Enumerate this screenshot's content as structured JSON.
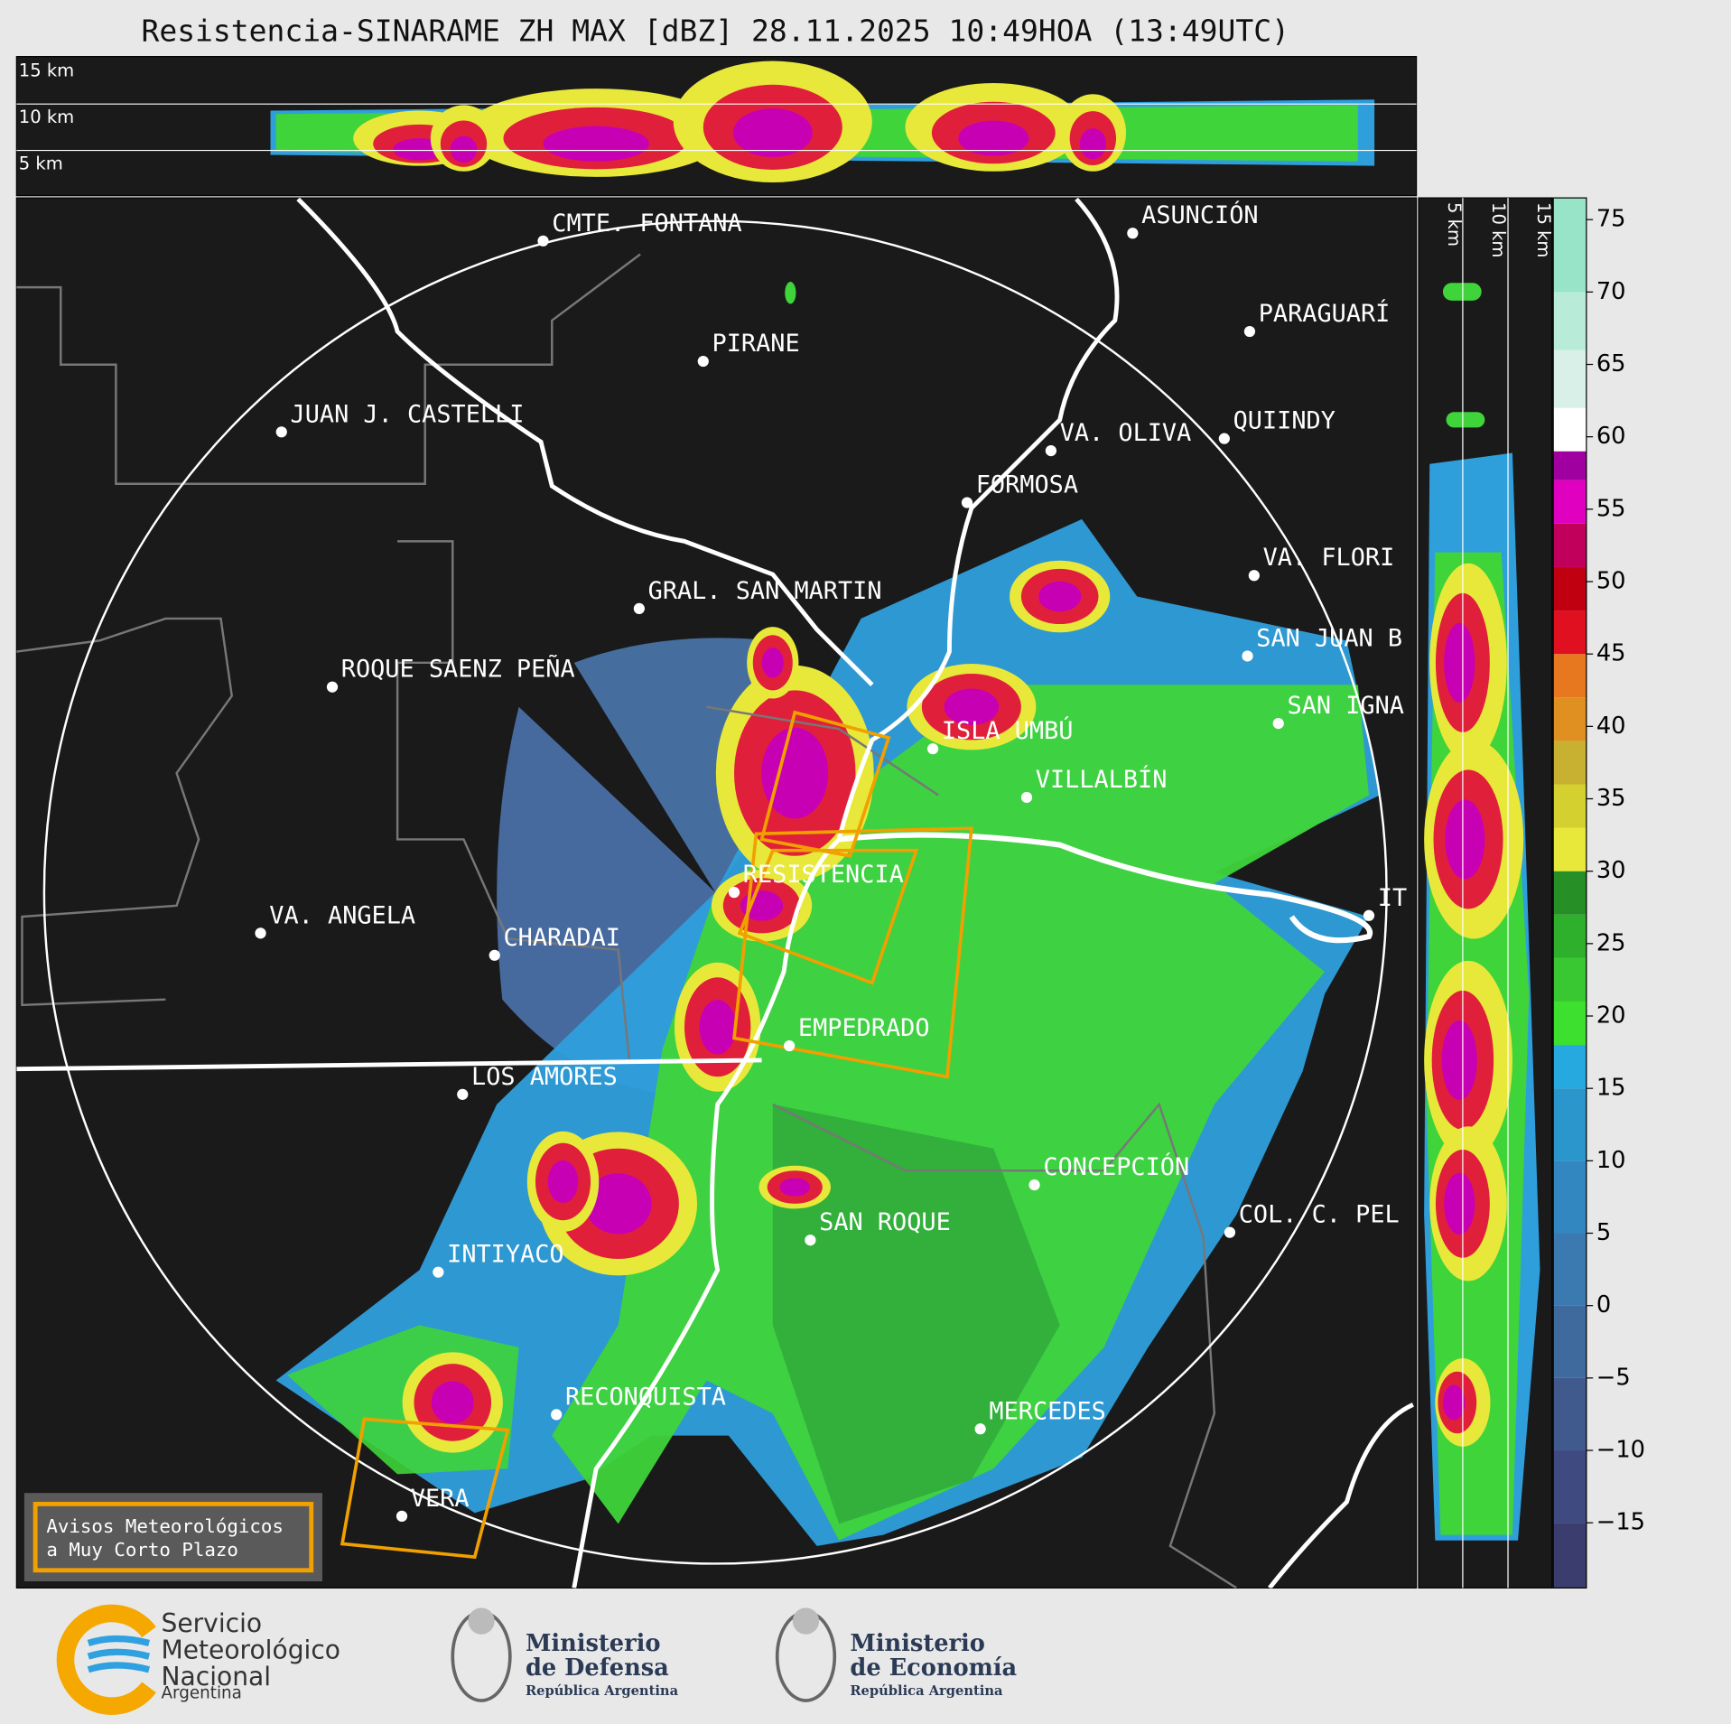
{
  "title": "Resistencia-SINARAME ZH MAX [dBZ] 28.11.2025 10:49HOA (13:49UTC)",
  "cross_section": {
    "top_labels": [
      "15 km",
      "10 km",
      "5 km"
    ],
    "side_labels": [
      "5 km",
      "10 km",
      "15 km"
    ]
  },
  "cities": [
    "CMTE. FONTANA",
    "PIRANE",
    "JUAN J. CASTELLI",
    "ASUNCIÓN",
    "PARAGUARÍ",
    "VA. OLIVA",
    "QUIINDY",
    "FORMOSA",
    "VA. FLORI",
    "GRAL. SAN MARTIN",
    "SAN JUAN B",
    "ROQUE SAENZ PEÑA",
    "SAN IGNA",
    "ISLA UMBÚ",
    "VILLALBÍN",
    "RESISTENCIA",
    "VA. ANGELA",
    "CHARADAI",
    "IT",
    "EMPEDRADO",
    "LOS AMORES",
    "CONCEPCIÓN",
    "COL. C. PEL",
    "SAN ROQUE",
    "INTIYACO",
    "RECONQUISTA",
    "MERCEDES",
    "VERA"
  ],
  "colorbar": {
    "range": [
      -19.5,
      76.5
    ],
    "ticks": [
      75,
      70,
      65,
      60,
      55,
      50,
      45,
      40,
      35,
      30,
      25,
      20,
      15,
      10,
      5,
      0,
      {
        "value": -5,
        "label": "−5"
      },
      {
        "value": -10,
        "label": "−10"
      },
      {
        "value": -15,
        "label": "−15"
      }
    ]
  },
  "legend": {
    "lines": [
      "Avisos Meteorológicos",
      "a Muy Corto Plazo"
    ]
  },
  "logos": {
    "smn": [
      "Servicio",
      "Meteorológico",
      "Nacional",
      "Argentina"
    ],
    "defensa": [
      "Ministerio",
      "de Defensa",
      "República Argentina"
    ],
    "economia": [
      "Ministerio",
      "de Economía",
      "República Argentina"
    ]
  }
}
